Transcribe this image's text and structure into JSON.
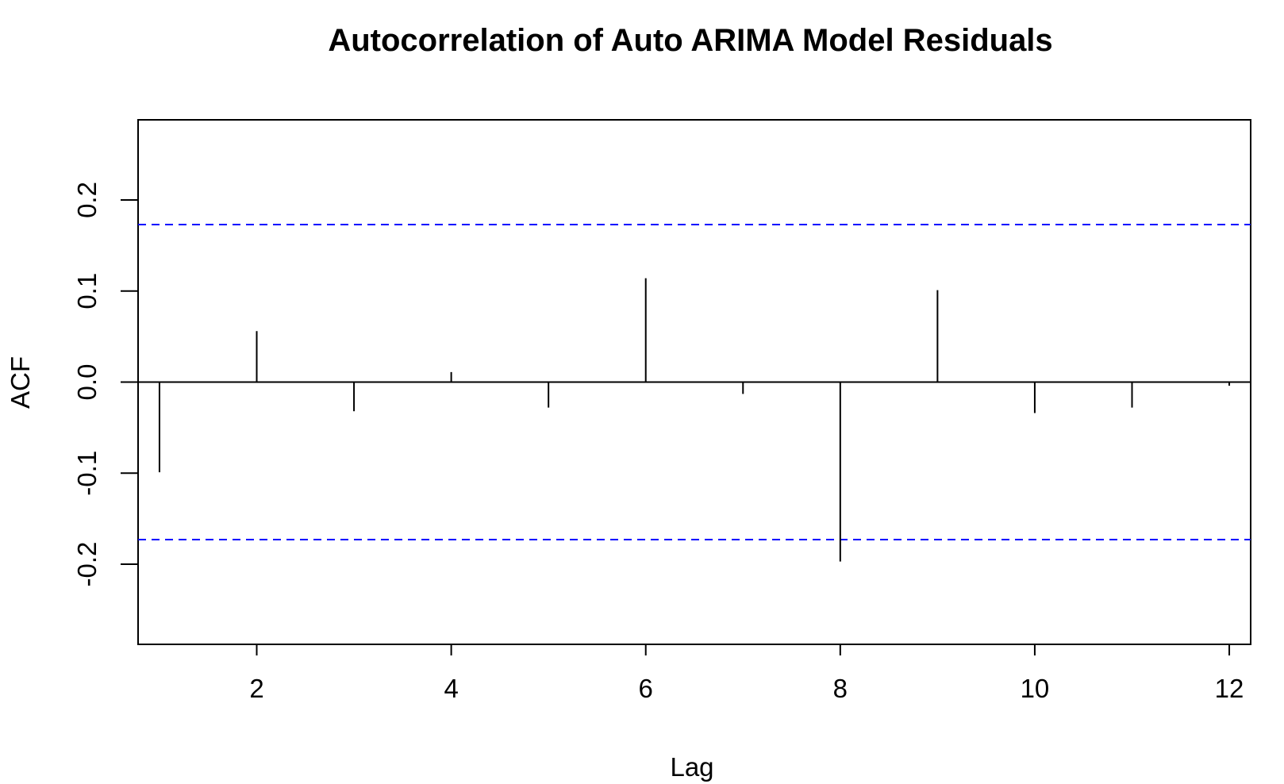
{
  "chart_data": {
    "type": "bar",
    "title": "Autocorrelation of Auto ARIMA Model Residuals",
    "xlabel": "Lag",
    "ylabel": "ACF",
    "x": [
      1,
      2,
      3,
      4,
      5,
      6,
      7,
      8,
      9,
      10,
      11,
      12
    ],
    "values": [
      -0.099,
      0.056,
      -0.032,
      0.011,
      -0.028,
      0.114,
      -0.013,
      -0.197,
      0.101,
      -0.034,
      -0.028,
      -0.004
    ],
    "xlim": [
      0.78,
      12.22
    ],
    "ylim": [
      -0.288,
      0.288
    ],
    "x_ticks": [
      2,
      4,
      6,
      8,
      10,
      12
    ],
    "x_tick_labels": [
      "2",
      "4",
      "6",
      "8",
      "10",
      "12"
    ],
    "y_ticks": [
      -0.2,
      -0.1,
      0.0,
      0.1,
      0.2
    ],
    "y_tick_labels": [
      "-0.2",
      "-0.1",
      "0.0",
      "0.1",
      "0.2"
    ],
    "confidence_bounds": [
      0.173,
      -0.173
    ],
    "zero_line": 0,
    "colors": {
      "bars": "#000000",
      "confidence": "#0000ff",
      "frame": "#000000"
    },
    "grid": false,
    "legend": "none"
  }
}
